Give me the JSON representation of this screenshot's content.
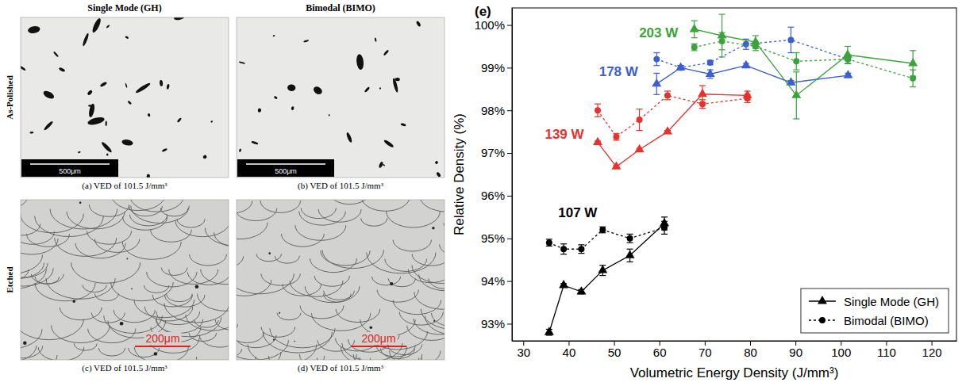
{
  "chart_data": {
    "type": "scatter",
    "label": "(e)",
    "x_label": "Volumetric Energy Density (J/mm³)",
    "y_label": "Relative Density (%)",
    "xlim": [
      27.5,
      125.5
    ],
    "xticks": [
      30,
      40,
      50,
      60,
      70,
      80,
      90,
      100,
      110,
      120
    ],
    "ylim": [
      92.6,
      100.4
    ],
    "yticks": [
      {
        "value": 93,
        "label": "93%"
      },
      {
        "value": 94,
        "label": "94%"
      },
      {
        "value": 95,
        "label": "95%"
      },
      {
        "value": 96,
        "label": "96%"
      },
      {
        "value": 97,
        "label": "97%"
      },
      {
        "value": 98,
        "label": "98%"
      },
      {
        "value": 99,
        "label": "99%"
      },
      {
        "value": 100,
        "label": "100%"
      }
    ],
    "grid": false,
    "legend": "lower right",
    "groups": [
      {
        "label": "107 W",
        "color": "#000000",
        "series": [
          {
            "name": "Single Mode (GH)",
            "marker": "triangle",
            "line_style": "solid",
            "x": [
              35.7,
              38.9,
              42.8,
              47.5,
              53.5,
              61.1
            ],
            "values": [
              92.8,
              93.9,
              93.75,
              94.25,
              94.6,
              95.35
            ],
            "errors": [
              0.07,
              0.04,
              0.05,
              0.12,
              0.15,
              0.15
            ]
          },
          {
            "name": "Bimodal (BIMO)",
            "marker": "circle",
            "line_style": "dotted",
            "x": [
              35.7,
              38.9,
              42.8,
              47.5,
              53.5,
              61.1
            ],
            "values": [
              94.9,
              94.75,
              94.75,
              95.2,
              95.0,
              95.25
            ],
            "errors": [
              0.08,
              0.12,
              0.1,
              0.07,
              0.1,
              0.15
            ]
          }
        ]
      },
      {
        "label": "139 W",
        "color": "#e8302c",
        "series": [
          {
            "name": "Single Mode (GH)",
            "marker": "triangle",
            "line_style": "solid",
            "x": [
              46.4,
              50.5,
              55.6,
              61.8,
              69.5,
              79.4
            ],
            "values": [
              97.25,
              96.68,
              97.08,
              97.5,
              98.38,
              98.35
            ],
            "errors": [
              0.03,
              0.03,
              0.03,
              0.03,
              0.2,
              0.1
            ]
          },
          {
            "name": "Bimodal (BIMO)",
            "marker": "circle",
            "line_style": "dotted",
            "x": [
              46.4,
              50.5,
              55.6,
              61.8,
              69.5,
              79.4
            ],
            "values": [
              98.0,
              97.38,
              97.78,
              98.35,
              98.15,
              98.28
            ],
            "errors": [
              0.15,
              0.08,
              0.25,
              0.1,
              0.1,
              0.1
            ]
          }
        ]
      },
      {
        "label": "178 W",
        "color": "#3b5fd0",
        "series": [
          {
            "name": "Single Mode (GH)",
            "marker": "triangle",
            "line_style": "solid",
            "x": [
              59.4,
              64.7,
              71.2,
              79.1,
              89.0,
              101.6
            ],
            "values": [
              98.62,
              99.0,
              98.85,
              99.05,
              98.65,
              98.82
            ],
            "errors": [
              0.25,
              0.05,
              0.1,
              0.05,
              0.05,
              0.05
            ]
          },
          {
            "name": "Bimodal (BIMO)",
            "marker": "circle",
            "line_style": "dotted",
            "x": [
              59.4,
              64.7,
              71.2,
              79.1,
              89.0,
              101.6
            ],
            "values": [
              99.2,
              99.0,
              99.12,
              99.55,
              99.65,
              99.2
            ],
            "errors": [
              0.15,
              0.05,
              0.05,
              0.12,
              0.3,
              0.1
            ]
          }
        ]
      },
      {
        "label": "203 W",
        "color": "#3aa33a",
        "series": [
          {
            "name": "Single Mode (GH)",
            "marker": "triangle",
            "line_style": "solid",
            "x": [
              67.7,
              73.8,
              81.2,
              90.2,
              101.5,
              115.9
            ],
            "values": [
              99.9,
              99.75,
              99.6,
              98.35,
              99.3,
              99.1
            ],
            "errors": [
              0.2,
              0.5,
              0.15,
              0.55,
              0.2,
              0.3
            ]
          },
          {
            "name": "Bimodal (BIMO)",
            "marker": "circle",
            "line_style": "dotted",
            "x": [
              67.7,
              73.8,
              81.2,
              90.2,
              101.5,
              115.9
            ],
            "values": [
              99.48,
              99.62,
              99.5,
              99.15,
              99.2,
              98.75
            ],
            "errors": [
              0.08,
              0.2,
              0.1,
              0.2,
              0.1,
              0.2
            ]
          }
        ]
      }
    ]
  },
  "micrographs": {
    "column_heads": [
      "Single Mode (GH)",
      "Bimodal (BIMO)"
    ],
    "row_labels": [
      "As-Polished",
      "Etched"
    ],
    "panels": [
      {
        "caption": "(a) VED of 101.5 J/mm³",
        "scale_bar": "500μm"
      },
      {
        "caption": "(b) VED of 101.5 J/mm³",
        "scale_bar": "500μm"
      },
      {
        "caption": "(c) VED of 101.5 J/mm³",
        "scale_bar": "200μm"
      },
      {
        "caption": "(d) VED of 101.5 J/mm³",
        "scale_bar": "200μm"
      }
    ]
  }
}
